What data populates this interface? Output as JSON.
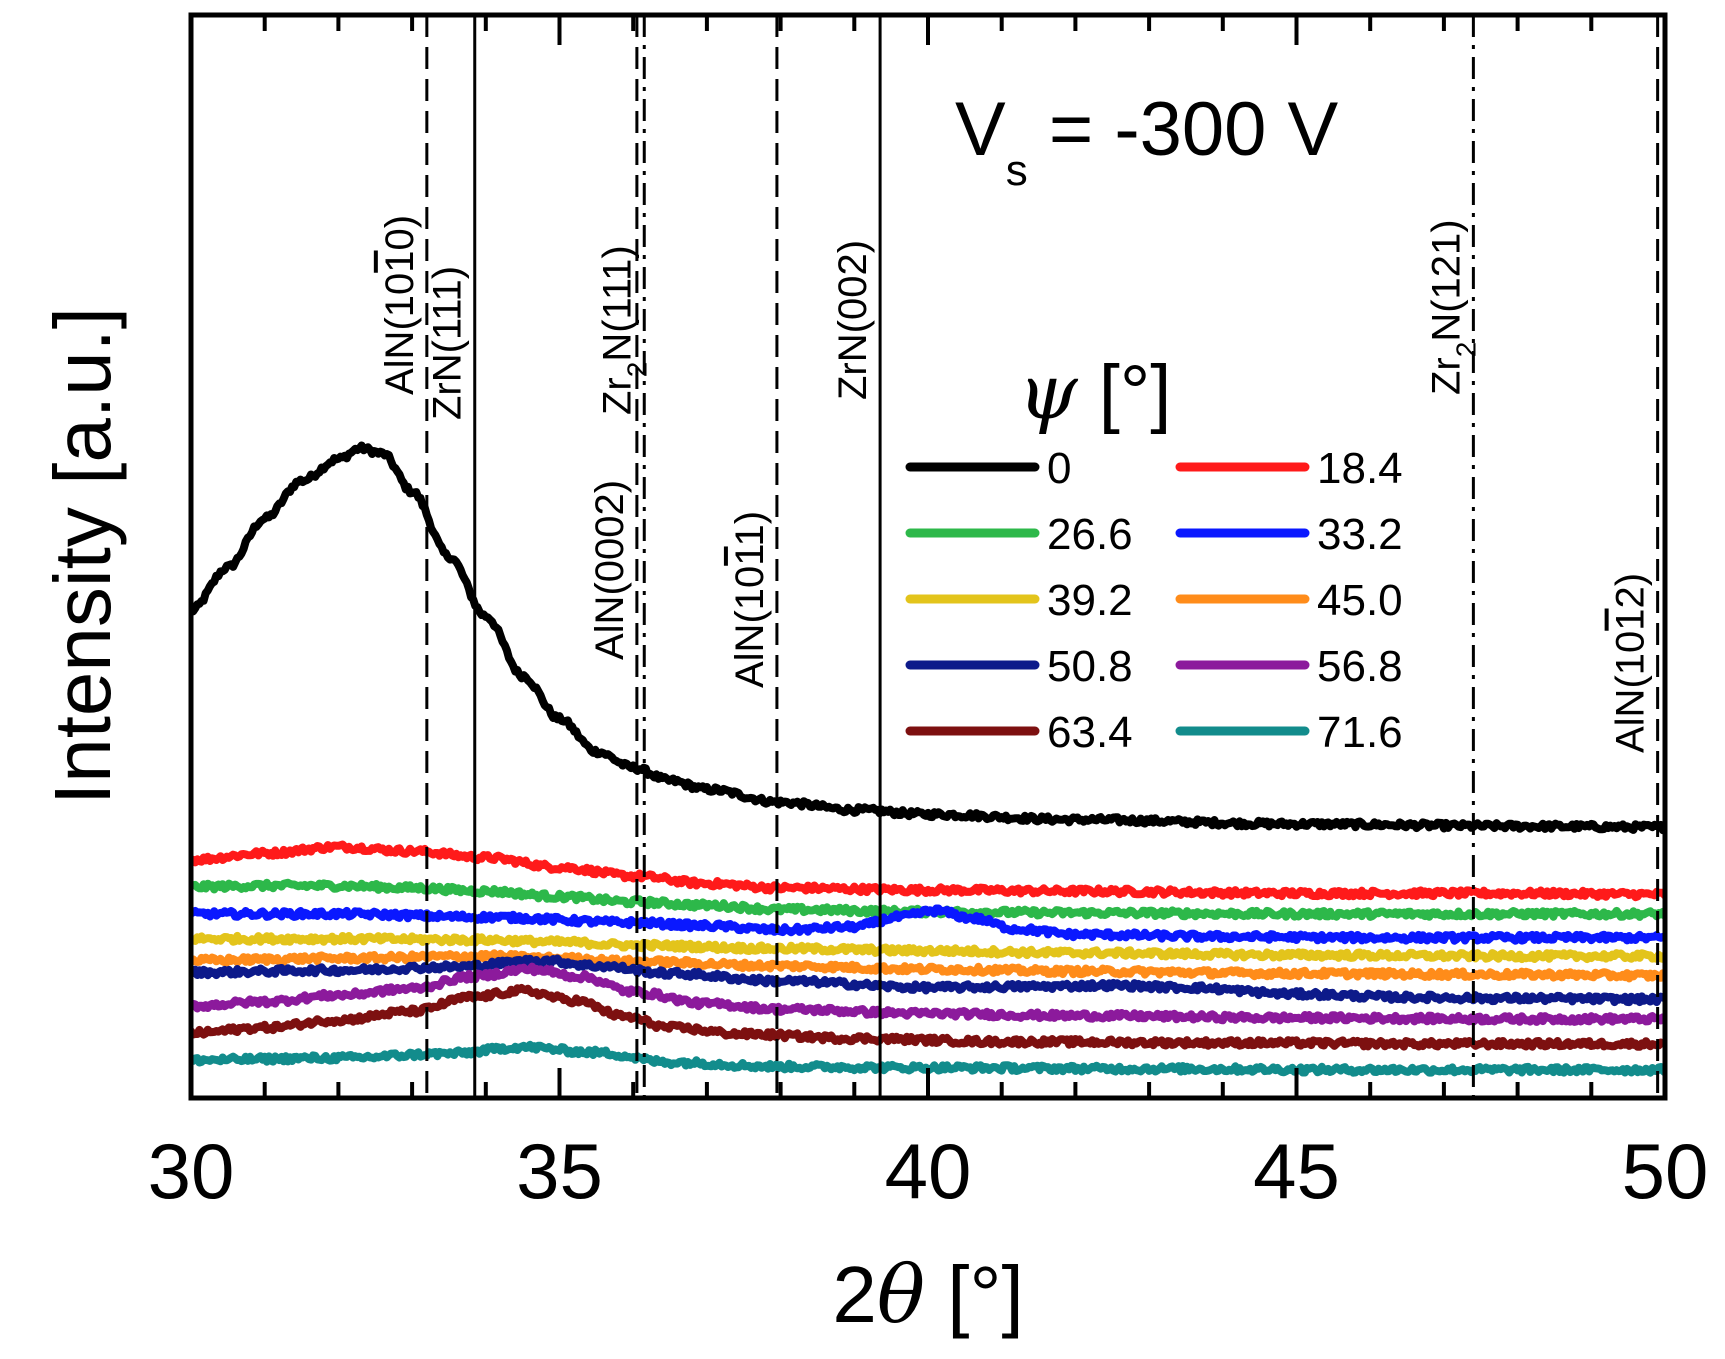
{
  "chart_data": {
    "type": "line",
    "xlabel": "2θ [°]",
    "ylabel": "Intensity [a.u.]",
    "xlim": [
      30,
      50
    ],
    "ylim": [
      0,
      100
    ],
    "x_ticks": [
      30,
      35,
      40,
      45,
      50
    ],
    "y_ticks": [],
    "annotation": {
      "main": "V",
      "sub": "s",
      "rest": " = -300 V"
    },
    "legend": {
      "title_symbol": "ψ",
      "title_unit": " [°]",
      "position": "top-right"
    },
    "reference_lines": [
      {
        "label": "AlN(10-10)",
        "text_parts": [
          [
            "AlN(10",
            ""
          ],
          [
            "1",
            "overline"
          ],
          [
            "0)",
            ""
          ]
        ],
        "x": 33.2,
        "style": "dashed"
      },
      {
        "label": "ZrN(111)",
        "text_parts": [
          [
            "ZrN(111)",
            ""
          ]
        ],
        "x": 33.85,
        "style": "solid"
      },
      {
        "label": "AlN(0002)",
        "text_parts": [
          [
            "AlN(0002)",
            ""
          ]
        ],
        "x": 36.05,
        "style": "dashed"
      },
      {
        "label": "Zr2N(111)",
        "text_parts": [
          [
            "Zr",
            ""
          ],
          [
            "2",
            "sub"
          ],
          [
            "N(111)",
            ""
          ]
        ],
        "x": 36.15,
        "style": "dashdot"
      },
      {
        "label": "AlN(10-11)",
        "text_parts": [
          [
            "AlN(10",
            ""
          ],
          [
            "1",
            "overline"
          ],
          [
            "1)",
            ""
          ]
        ],
        "x": 37.95,
        "style": "dashed"
      },
      {
        "label": "ZrN(002)",
        "text_parts": [
          [
            "ZrN(002)",
            ""
          ]
        ],
        "x": 39.35,
        "style": "solid"
      },
      {
        "label": "Zr2N(121)",
        "text_parts": [
          [
            "Zr",
            ""
          ],
          [
            "2",
            "sub"
          ],
          [
            "N(121)",
            ""
          ]
        ],
        "x": 47.4,
        "style": "dashdot"
      },
      {
        "label": "AlN(10-12)",
        "text_parts": [
          [
            "AlN(10",
            ""
          ],
          [
            "1",
            "overline"
          ],
          [
            "2)",
            ""
          ]
        ],
        "x": 49.9,
        "style": "dashed"
      }
    ],
    "series": [
      {
        "name": "0",
        "color": "#000000",
        "x": [
          30.0,
          30.5,
          31.0,
          31.5,
          32.0,
          32.3,
          32.6,
          33.0,
          33.5,
          34.0,
          34.5,
          35.0,
          35.5,
          36.0,
          36.5,
          37.0,
          38.0,
          39.0,
          40.0,
          42.0,
          45.0,
          48.0,
          50.0
        ],
        "y": [
          45,
          49,
          53.5,
          57,
          59,
          60,
          59.5,
          56,
          50,
          44.5,
          39,
          35,
          32,
          30.5,
          29.3,
          28.5,
          27.3,
          26.6,
          26.2,
          25.7,
          25.3,
          25.1,
          25.0
        ]
      },
      {
        "name": "18.4",
        "color": "#ff1a1a",
        "x": [
          30,
          31,
          32,
          33,
          34,
          35,
          36,
          37,
          38,
          40,
          42,
          45,
          48,
          50
        ],
        "y": [
          22,
          22.6,
          23.2,
          22.8,
          22.2,
          21.3,
          20.5,
          19.8,
          19.4,
          19.2,
          19.1,
          18.9,
          18.9,
          18.8
        ]
      },
      {
        "name": "26.6",
        "color": "#2db84a",
        "x": [
          30,
          31,
          32,
          33,
          34,
          35,
          36,
          37,
          38,
          40,
          42,
          45,
          48,
          50
        ],
        "y": [
          19.5,
          19.6,
          19.6,
          19.4,
          19.1,
          18.6,
          18.1,
          17.8,
          17.4,
          17.2,
          17.1,
          17.0,
          17.0,
          17.0
        ]
      },
      {
        "name": "33.2",
        "color": "#0a18ff",
        "x": [
          30,
          32,
          34,
          36,
          37,
          38,
          39,
          39.6,
          40.1,
          40.6,
          41.2,
          42,
          44,
          46,
          48,
          50
        ],
        "y": [
          17,
          17,
          16.7,
          16.2,
          15.9,
          15.5,
          15.8,
          16.7,
          17.3,
          16.6,
          15.6,
          15.1,
          14.9,
          14.8,
          14.8,
          14.8
        ]
      },
      {
        "name": "39.2",
        "color": "#e3c41b",
        "x": [
          30,
          32,
          34,
          35,
          36,
          38,
          40,
          42,
          45,
          48,
          50
        ],
        "y": [
          14.7,
          14.7,
          14.6,
          14.4,
          14.1,
          13.8,
          13.6,
          13.4,
          13.2,
          13.1,
          13.1
        ]
      },
      {
        "name": "45.0",
        "color": "#ff8c1a",
        "x": [
          30,
          32,
          34,
          35,
          36,
          38,
          40,
          42,
          45,
          48,
          50
        ],
        "y": [
          12.7,
          12.9,
          13.1,
          12.9,
          12.6,
          12.2,
          11.9,
          11.7,
          11.5,
          11.4,
          11.3
        ]
      },
      {
        "name": "50.8",
        "color": "#0d1a8a",
        "x": [
          30,
          32,
          33.5,
          34.8,
          35.5,
          36.5,
          38,
          40,
          41.5,
          42.5,
          43.5,
          45,
          46.5,
          48,
          50
        ],
        "y": [
          11.6,
          11.8,
          12.1,
          12.7,
          12.2,
          11.5,
          10.8,
          10.2,
          10.3,
          10.4,
          10.2,
          9.6,
          9.3,
          9.2,
          9.1
        ]
      },
      {
        "name": "56.8",
        "color": "#8c1a9c",
        "x": [
          30,
          31,
          32,
          33,
          33.8,
          34.6,
          35.3,
          36,
          37,
          38,
          40,
          42,
          45,
          48,
          50
        ],
        "y": [
          8.5,
          8.9,
          9.5,
          10.1,
          11.2,
          11.9,
          11.2,
          9.8,
          8.7,
          8.2,
          7.8,
          7.6,
          7.4,
          7.3,
          7.3
        ]
      },
      {
        "name": "63.4",
        "color": "#7d1010",
        "x": [
          30,
          31,
          32,
          33,
          33.8,
          34.5,
          35.2,
          35.9,
          36.5,
          37.5,
          39,
          41,
          44,
          47,
          50
        ],
        "y": [
          6.0,
          6.5,
          7.2,
          8.0,
          9.3,
          9.9,
          9.0,
          7.5,
          6.5,
          5.9,
          5.5,
          5.2,
          5.1,
          5.0,
          5.0
        ]
      },
      {
        "name": "71.6",
        "color": "#128c8c",
        "x": [
          30,
          32,
          33.5,
          34.5,
          35.5,
          36.5,
          38,
          40,
          43,
          46,
          50
        ],
        "y": [
          3.5,
          3.7,
          4.1,
          4.7,
          4.2,
          3.3,
          2.9,
          2.8,
          2.7,
          2.6,
          2.6
        ]
      }
    ]
  }
}
